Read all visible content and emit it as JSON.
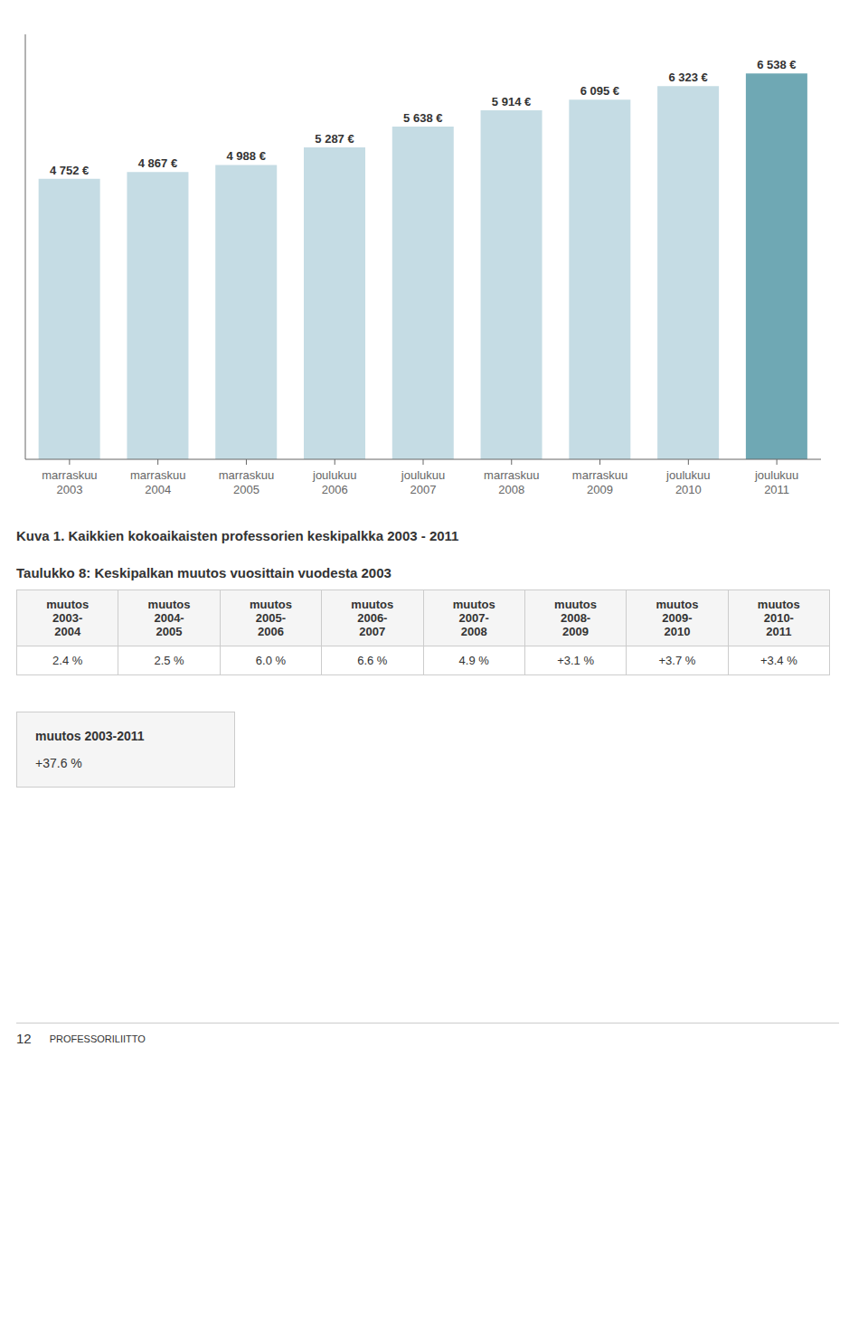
{
  "chart_data": {
    "type": "bar",
    "title": "Kuva 1. Kaikkien kokoaikaisten professorien keskipalkka 2003 - 2011",
    "categories": [
      "marraskuu\n2003",
      "marraskuu\n2004",
      "marraskuu\n2005",
      "joulukuu\n2006",
      "joulukuu\n2007",
      "marraskuu\n2008",
      "marraskuu\n2009",
      "joulukuu\n2010",
      "joulukuu\n2011"
    ],
    "values": [
      4752,
      4867,
      4988,
      5287,
      5638,
      5914,
      6095,
      6323,
      6538
    ],
    "value_labels": [
      "4 752 €",
      "4 867 €",
      "4 988 €",
      "5 287 €",
      "5 638 €",
      "5 914 €",
      "6 095 €",
      "6 323 €",
      "6 538 €"
    ],
    "data_labels": true,
    "colors": [
      "#c5dce4",
      "#c5dce4",
      "#c5dce4",
      "#c5dce4",
      "#c5dce4",
      "#c5dce4",
      "#c5dce4",
      "#c5dce4",
      "#6fa8b4"
    ],
    "ylim": [
      0,
      7200
    ],
    "tick_labels": "x",
    "grid": false,
    "table": {
      "title": "Taulukko 8: Keskipalkan muutos vuosittain vuodesta 2003",
      "headers": [
        "muutos\n2003-\n2004",
        "muutos\n2004-\n2005",
        "muutos\n2005-\n2006",
        "muutos\n2006-\n2007",
        "muutos\n2007-\n2008",
        "muutos\n2008-\n2009",
        "muutos\n2009-\n2010",
        "muutos\n2010-\n2011"
      ],
      "values": [
        "2.4 %",
        "2.5 %",
        "6.0 %",
        "6.6 %",
        "4.9 %",
        "+3.1 %",
        "+3.7 %",
        "+3.4 %"
      ]
    },
    "summary": {
      "title": "muutos 2003-2011",
      "value": "+37.6 %"
    },
    "footer": {
      "number": "12",
      "text": "PROFESSORILIITTO"
    }
  }
}
